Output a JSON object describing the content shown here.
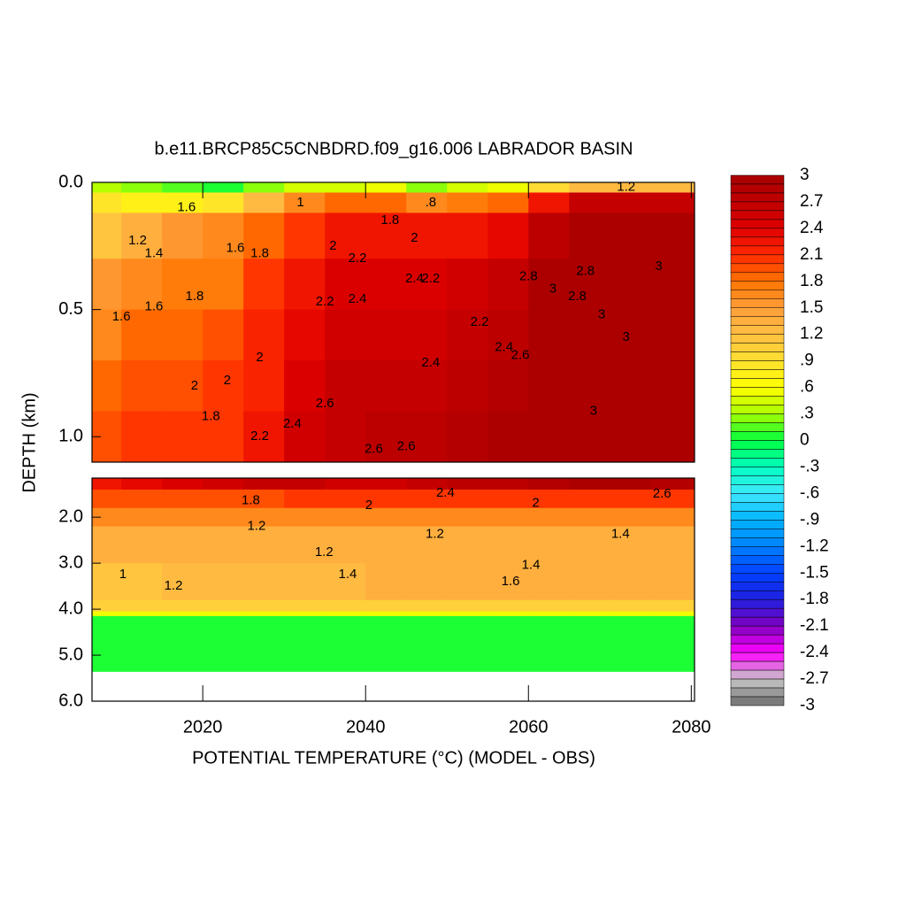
{
  "chart_data": {
    "type": "contour",
    "title": "b.e11.BRCP85C5CNBDRD.f09_g16.006 LABRADOR BASIN",
    "x_label": "POTENTIAL TEMPERATURE (°C) (MODEL - OBS)",
    "y_label": "DEPTH (km)",
    "xlim": [
      2006.4,
      2080.4
    ],
    "xticks": [
      2020,
      2040,
      2060,
      2080
    ],
    "x_edges": [
      2005,
      2010,
      2015,
      2020,
      2025,
      2030,
      2035,
      2040,
      2045,
      2050,
      2055,
      2060,
      2065,
      2070,
      2075,
      2080,
      2085
    ],
    "panels": [
      {
        "ylim": [
          0,
          1.1
        ],
        "yticks": [
          {
            "value": 0,
            "label": "0.0"
          },
          {
            "value": 0.5,
            "label": "0.5"
          },
          {
            "value": 1,
            "label": "1.0"
          }
        ],
        "depth_edges": [
          0,
          0.04,
          0.12,
          0.3,
          0.5,
          0.7,
          0.9,
          1.1
        ],
        "values": [
          [
            0.3,
            0.2,
            0.1,
            0.0,
            0.2,
            0.4,
            0.4,
            0.5,
            0.2,
            0.4,
            0.5,
            0.9,
            1.2,
            1.2,
            1.2,
            1.2
          ],
          [
            0.8,
            0.7,
            0.7,
            0.8,
            1.2,
            1.6,
            1.8,
            1.8,
            1.6,
            1.7,
            1.8,
            2.2,
            2.6,
            2.6,
            2.6,
            2.6
          ],
          [
            1.1,
            1.3,
            1.5,
            1.6,
            1.8,
            2.0,
            2.2,
            2.2,
            2.2,
            2.2,
            2.3,
            2.7,
            2.9,
            3.0,
            3.0,
            3.0
          ],
          [
            1.5,
            1.6,
            1.7,
            1.7,
            2.0,
            2.2,
            2.4,
            2.4,
            2.4,
            2.5,
            2.6,
            2.9,
            3.0,
            3.0,
            3.0,
            3.0
          ],
          [
            1.6,
            1.8,
            1.8,
            1.9,
            2.1,
            2.3,
            2.5,
            2.5,
            2.5,
            2.6,
            2.7,
            2.9,
            3.0,
            3.0,
            3.0,
            3.0
          ],
          [
            1.8,
            1.9,
            1.9,
            2.0,
            2.1,
            2.4,
            2.6,
            2.6,
            2.6,
            2.7,
            2.8,
            3.0,
            3.0,
            3.0,
            3.0,
            3.0
          ],
          [
            1.9,
            2.0,
            2.0,
            2.0,
            2.2,
            2.5,
            2.6,
            2.7,
            2.7,
            2.8,
            2.9,
            3.0,
            3.0,
            3.0,
            3.0,
            3.0
          ]
        ]
      },
      {
        "ylim": [
          1.15,
          6
        ],
        "yticks": [
          {
            "value": 2,
            "label": "2.0"
          },
          {
            "value": 3,
            "label": "3.0"
          },
          {
            "value": 4,
            "label": "4.0"
          },
          {
            "value": 5,
            "label": "5.0"
          },
          {
            "value": 6,
            "label": "6.0"
          }
        ],
        "depth_edges": [
          1.15,
          1.4,
          1.8,
          2.2,
          3.0,
          3.8,
          4.05,
          4.15,
          5.35
        ],
        "values": [
          [
            2.2,
            2.3,
            2.4,
            2.5,
            2.6,
            2.6,
            2.5,
            2.5,
            2.6,
            2.7,
            2.7,
            2.8,
            2.9,
            2.9,
            2.8,
            2.8
          ],
          [
            1.9,
            1.9,
            1.9,
            1.9,
            1.9,
            2.0,
            2.0,
            2.0,
            2.0,
            2.0,
            2.0,
            2.0,
            2.0,
            2.0,
            2.0,
            2.0
          ],
          [
            1.6,
            1.6,
            1.6,
            1.6,
            1.6,
            1.6,
            1.6,
            1.6,
            1.6,
            1.6,
            1.6,
            1.6,
            1.6,
            1.6,
            1.6,
            1.6
          ],
          [
            1.3,
            1.3,
            1.3,
            1.3,
            1.3,
            1.3,
            1.3,
            1.3,
            1.3,
            1.3,
            1.3,
            1.3,
            1.3,
            1.3,
            1.3,
            1.3
          ],
          [
            1.1,
            1.1,
            1.2,
            1.2,
            1.2,
            1.2,
            1.2,
            1.3,
            1.3,
            1.3,
            1.3,
            1.3,
            1.3,
            1.3,
            1.3,
            1.3
          ],
          [
            1.0,
            1.0,
            1.0,
            1.0,
            1.0,
            1.0,
            1.0,
            1.0,
            1.0,
            1.0,
            1.0,
            1.0,
            1.0,
            1.0,
            1.0,
            1.0
          ],
          [
            0.5,
            0.5,
            0.5,
            0.5,
            0.5,
            0.5,
            0.5,
            0.5,
            0.5,
            0.5,
            0.5,
            0.5,
            0.5,
            0.5,
            0.5,
            0.5
          ],
          [
            0.0,
            0.0,
            0.0,
            0.0,
            0.0,
            0.0,
            0.0,
            0.0,
            0.0,
            0.0,
            0.0,
            0.0,
            0.0,
            0.0,
            0.0,
            0.0
          ]
        ]
      }
    ],
    "contour_labels": [
      {
        "panel": 0,
        "x": 2010,
        "y": 0.53,
        "value": 1.6
      },
      {
        "panel": 0,
        "x": 2012,
        "y": 0.23,
        "value": 1.2
      },
      {
        "panel": 0,
        "x": 2014,
        "y": 0.28,
        "value": 1.4
      },
      {
        "panel": 0,
        "x": 2014,
        "y": 0.49,
        "value": 1.6
      },
      {
        "panel": 0,
        "x": 2018,
        "y": 0.1,
        "value": 1.6
      },
      {
        "panel": 0,
        "x": 2019,
        "y": 0.45,
        "value": 1.8
      },
      {
        "panel": 0,
        "x": 2019,
        "y": 0.8,
        "value": 2
      },
      {
        "panel": 0,
        "x": 2021,
        "y": 0.92,
        "value": 1.8
      },
      {
        "panel": 0,
        "x": 2023,
        "y": 0.78,
        "value": 2
      },
      {
        "panel": 0,
        "x": 2024,
        "y": 0.26,
        "value": 1.6
      },
      {
        "panel": 0,
        "x": 2027,
        "y": 0.28,
        "value": 1.8
      },
      {
        "panel": 0,
        "x": 2027,
        "y": 0.69,
        "value": 2
      },
      {
        "panel": 0,
        "x": 2027,
        "y": 1.0,
        "value": 2.2
      },
      {
        "panel": 0,
        "x": 2032,
        "y": 0.08,
        "value": 1
      },
      {
        "panel": 0,
        "x": 2031,
        "y": 0.95,
        "value": 2.4
      },
      {
        "panel": 0,
        "x": 2035,
        "y": 0.47,
        "value": 2.2
      },
      {
        "panel": 0,
        "x": 2035,
        "y": 0.87,
        "value": 2.6
      },
      {
        "panel": 0,
        "x": 2036,
        "y": 0.25,
        "value": 2
      },
      {
        "panel": 0,
        "x": 2039,
        "y": 0.3,
        "value": 2.2
      },
      {
        "panel": 0,
        "x": 2039,
        "y": 0.46,
        "value": 2.4
      },
      {
        "panel": 0,
        "x": 2041,
        "y": 1.05,
        "value": 2.6
      },
      {
        "panel": 0,
        "x": 2043,
        "y": 0.15,
        "value": 1.8
      },
      {
        "panel": 0,
        "x": 2045,
        "y": 1.04,
        "value": 2.6
      },
      {
        "panel": 0,
        "x": 2046,
        "y": 0.22,
        "value": 2
      },
      {
        "panel": 0,
        "x": 2046,
        "y": 0.38,
        "value": 2.4
      },
      {
        "panel": 0,
        "x": 2048,
        "y": 0.38,
        "value": 2.2
      },
      {
        "panel": 0,
        "x": 2048,
        "y": 0.71,
        "value": 2.4
      },
      {
        "panel": 0,
        "x": 2048,
        "y": 0.08,
        "value": 0.8,
        "label": ".8"
      },
      {
        "panel": 0,
        "x": 2054,
        "y": 0.55,
        "value": 2.2
      },
      {
        "panel": 0,
        "x": 2057,
        "y": 0.65,
        "value": 2.4
      },
      {
        "panel": 0,
        "x": 2059,
        "y": 0.68,
        "value": 2.6
      },
      {
        "panel": 0,
        "x": 2060,
        "y": 0.37,
        "value": 2.8
      },
      {
        "panel": 0,
        "x": 2063,
        "y": 0.42,
        "value": 3
      },
      {
        "panel": 0,
        "x": 2066,
        "y": 0.45,
        "value": 2.8
      },
      {
        "panel": 0,
        "x": 2067,
        "y": 0.35,
        "value": 2.8
      },
      {
        "panel": 0,
        "x": 2069,
        "y": 0.52,
        "value": 3
      },
      {
        "panel": 0,
        "x": 2068,
        "y": 0.9,
        "value": 3
      },
      {
        "panel": 0,
        "x": 2072,
        "y": 0.61,
        "value": 3
      },
      {
        "panel": 0,
        "x": 2076,
        "y": 0.33,
        "value": 3
      },
      {
        "panel": 0,
        "x": 2072,
        "y": 0.02,
        "value": 1.2
      },
      {
        "panel": 1,
        "x": 2010.2,
        "y": 3.25,
        "value": 1
      },
      {
        "panel": 1,
        "x": 2016.4,
        "y": 3.5,
        "value": 1.2
      },
      {
        "panel": 1,
        "x": 2025.9,
        "y": 1.64,
        "value": 1.8
      },
      {
        "panel": 1,
        "x": 2026.6,
        "y": 2.2,
        "value": 1.2
      },
      {
        "panel": 1,
        "x": 2034.9,
        "y": 2.77,
        "value": 1.2
      },
      {
        "panel": 1,
        "x": 2037.8,
        "y": 3.25,
        "value": 1.4
      },
      {
        "panel": 1,
        "x": 2040.4,
        "y": 1.75,
        "value": 2
      },
      {
        "panel": 1,
        "x": 2048.5,
        "y": 2.37,
        "value": 1.2
      },
      {
        "panel": 1,
        "x": 2049.8,
        "y": 1.48,
        "value": 2.4
      },
      {
        "panel": 1,
        "x": 2057.8,
        "y": 3.4,
        "value": 1.6
      },
      {
        "panel": 1,
        "x": 2060.3,
        "y": 3.05,
        "value": 1.4
      },
      {
        "panel": 1,
        "x": 2060.9,
        "y": 1.7,
        "value": 2
      },
      {
        "panel": 1,
        "x": 2071.3,
        "y": 2.37,
        "value": 1.4
      },
      {
        "panel": 1,
        "x": 2076.4,
        "y": 1.5,
        "value": 2.6
      }
    ],
    "colorbar": {
      "ticks": [
        3,
        2.7,
        2.4,
        2.1,
        1.8,
        1.5,
        1.2,
        {
          "value": 0.9,
          "label": ".9"
        },
        {
          "value": 0.6,
          "label": ".6"
        },
        {
          "value": 0.3,
          "label": ".3"
        },
        0,
        {
          "value": -0.3,
          "label": "-.3"
        },
        {
          "value": -0.6,
          "label": "-.6"
        },
        {
          "value": -0.9,
          "label": "-.9"
        },
        -1.2,
        -1.5,
        -1.8,
        -2.1,
        -2.4,
        -2.7,
        -3
      ],
      "colors": [
        "#a80000",
        "#c00000",
        "#e00000",
        "#ff2a00",
        "#ff7400",
        "#ff9e3a",
        "#ffbf42",
        "#ffe030",
        "#ffff00",
        "#a8ff00",
        "#00ff40",
        "#00ffc0",
        "#40e8ff",
        "#00b4ff",
        "#0080ff",
        "#0040ff",
        "#2020e0",
        "#8000c0",
        "#ff00ff",
        "#c8c8c8",
        "#6c6c6c"
      ]
    }
  }
}
